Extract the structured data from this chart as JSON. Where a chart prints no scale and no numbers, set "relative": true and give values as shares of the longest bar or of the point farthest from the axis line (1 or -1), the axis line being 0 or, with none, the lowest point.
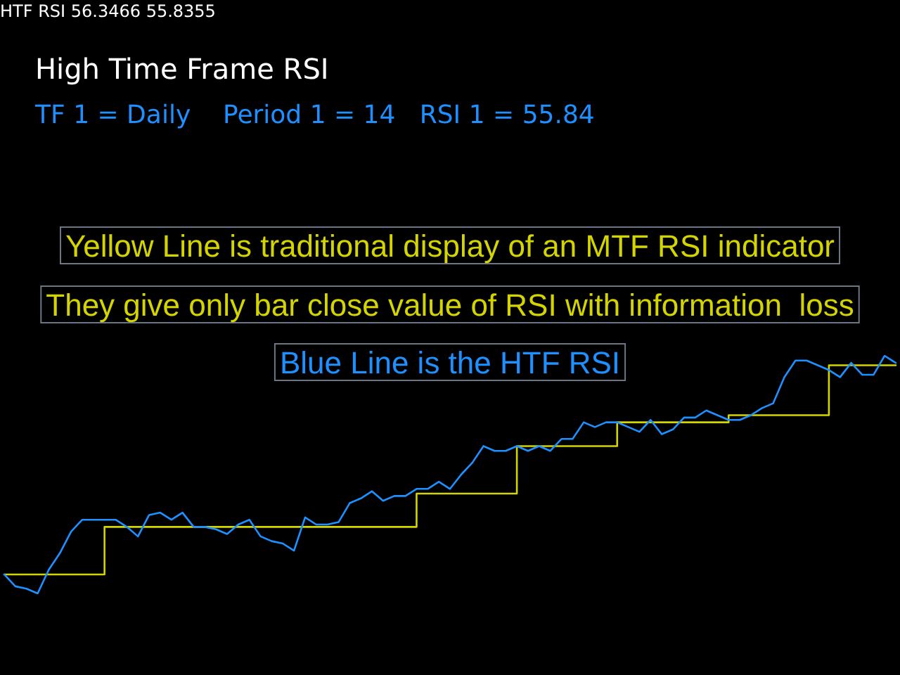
{
  "chart_data": {
    "type": "line",
    "relative": true,
    "title": "High Time Frame RSI",
    "subtitle": "TF 1 = Daily    Period 1 = 14   RSI 1 = 55.84",
    "annotations": [
      "HTF RSI 56.3466 55.8355",
      "Yellow Line is traditional display of an MTF RSI indicator",
      "They give only bar close value of RSI with information  loss",
      "Blue Line is the HTF RSI"
    ],
    "categories": [
      null,
      null,
      null,
      null,
      null,
      null,
      null,
      null,
      null,
      null,
      null,
      null,
      null,
      null,
      null,
      null,
      null,
      null,
      null,
      null,
      null,
      null,
      null,
      null,
      null,
      null,
      null,
      null,
      null,
      null,
      null,
      null,
      null,
      null,
      null,
      null,
      null,
      null,
      null,
      null,
      null,
      null,
      null,
      null,
      null,
      null,
      null,
      null,
      null,
      null,
      null,
      null,
      null,
      null,
      null,
      null,
      null,
      null,
      null,
      null,
      null,
      null,
      null,
      null,
      null,
      null,
      null,
      null,
      null,
      null,
      null,
      null,
      null,
      null,
      null,
      null,
      null,
      null,
      null,
      null,
      null
    ],
    "series": [
      {
        "type": "step",
        "color": "#d4d400",
        "values": [
          0.08,
          0.08,
          0.08,
          0.08,
          0.08,
          0.08,
          0.08,
          0.08,
          0.08,
          0.28,
          0.28,
          0.28,
          0.28,
          0.28,
          0.28,
          0.28,
          0.28,
          0.28,
          0.28,
          0.28,
          0.28,
          0.28,
          0.28,
          0.28,
          0.28,
          0.28,
          0.28,
          0.28,
          0.28,
          0.28,
          0.28,
          0.28,
          0.28,
          0.28,
          0.28,
          0.28,
          0.28,
          0.42,
          0.42,
          0.42,
          0.42,
          0.42,
          0.42,
          0.42,
          0.42,
          0.42,
          0.62,
          0.62,
          0.62,
          0.62,
          0.62,
          0.62,
          0.62,
          0.62,
          0.62,
          0.72,
          0.72,
          0.72,
          0.72,
          0.72,
          0.72,
          0.72,
          0.72,
          0.72,
          0.72,
          0.75,
          0.75,
          0.75,
          0.75,
          0.75,
          0.75,
          0.75,
          0.75,
          0.75,
          0.96,
          0.96,
          0.96,
          0.96,
          0.96,
          0.96,
          0.96
        ]
      },
      {
        "color": "#1e90ff",
        "values": [
          0.08,
          0.03,
          0.02,
          0,
          0.1,
          0.17,
          0.26,
          0.31,
          0.31,
          0.31,
          0.31,
          0.28,
          0.24,
          0.33,
          0.34,
          0.31,
          0.34,
          0.28,
          0.28,
          0.27,
          0.25,
          0.29,
          0.31,
          0.24,
          0.22,
          0.21,
          0.18,
          0.32,
          0.29,
          0.29,
          0.3,
          0.38,
          0.4,
          0.43,
          0.39,
          0.41,
          0.41,
          0.44,
          0.44,
          0.47,
          0.44,
          0.5,
          0.55,
          0.62,
          0.6,
          0.6,
          0.62,
          0.6,
          0.62,
          0.6,
          0.65,
          0.65,
          0.72,
          0.7,
          0.72,
          0.72,
          0.7,
          0.68,
          0.73,
          0.67,
          0.69,
          0.74,
          0.74,
          0.77,
          0.75,
          0.73,
          0.73,
          0.75,
          0.78,
          0.8,
          0.91,
          0.98,
          0.98,
          0.96,
          0.94,
          0.91,
          0.97,
          0.92,
          0.92,
          1.0,
          0.97
        ]
      }
    ],
    "grid": false,
    "marker": "none"
  }
}
